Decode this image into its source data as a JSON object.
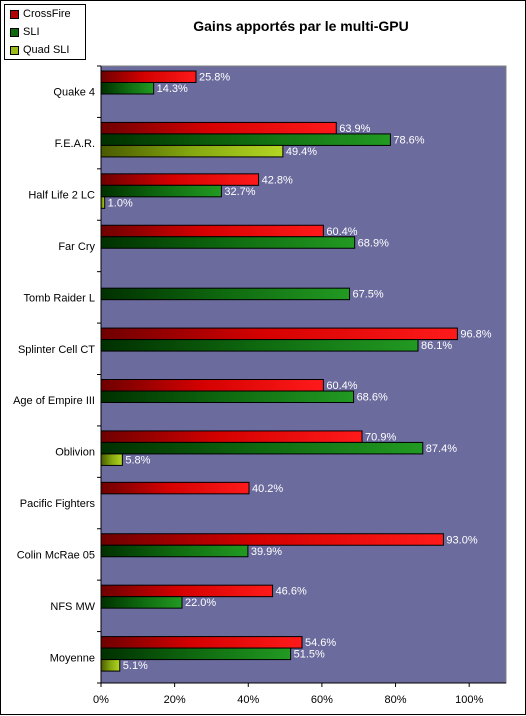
{
  "chart_data": {
    "type": "bar",
    "orientation": "horizontal",
    "title": "Gains apportés par le multi-GPU",
    "categories": [
      "Quake 4",
      "F.E.A.R.",
      "Half Life 2 LC",
      "Far Cry",
      "Tomb Raider L",
      "Splinter Cell CT",
      "Age of Empire III",
      "Oblivion",
      "Pacific Fighters",
      "Colin McRae 05",
      "NFS MW",
      "Moyenne"
    ],
    "series": [
      {
        "name": "CrossFire",
        "color": "#ff1a1a",
        "values": [
          25.8,
          63.9,
          42.8,
          60.4,
          null,
          96.8,
          60.4,
          70.9,
          40.2,
          93.0,
          46.6,
          54.6
        ],
        "labels": [
          "25.8%",
          "63.9%",
          "42.8%",
          "60.4%",
          "",
          "96.8%",
          "60.4%",
          "70.9%",
          "40.2%",
          "93.0%",
          "46.6%",
          "54.6%"
        ]
      },
      {
        "name": "SLI",
        "color": "#1f8a1f",
        "values": [
          14.3,
          78.6,
          32.7,
          68.9,
          67.5,
          86.1,
          68.6,
          87.4,
          null,
          39.9,
          22.0,
          51.5
        ],
        "labels": [
          "14.3%",
          "78.6%",
          "32.7%",
          "68.9%",
          "67.5%",
          "86.1%",
          "68.6%",
          "87.4%",
          "",
          "39.9%",
          "22.0%",
          "51.5%"
        ]
      },
      {
        "name": "Quad SLI",
        "color": "#a8cc1c",
        "values": [
          null,
          49.4,
          1.0,
          null,
          null,
          null,
          null,
          5.8,
          null,
          null,
          null,
          5.1
        ],
        "labels": [
          "",
          "49.4%",
          "1.0%",
          "",
          "",
          "",
          "",
          "5.8%",
          "",
          "",
          "",
          "5.1%"
        ]
      }
    ],
    "x_ticks": [
      "0%",
      "20%",
      "40%",
      "60%",
      "80%",
      "100%"
    ],
    "xlim": [
      0,
      110
    ],
    "xlabel": "",
    "ylabel": "",
    "legend_position": "top-left",
    "plot_background": "#6b6b9e",
    "grid": false
  }
}
